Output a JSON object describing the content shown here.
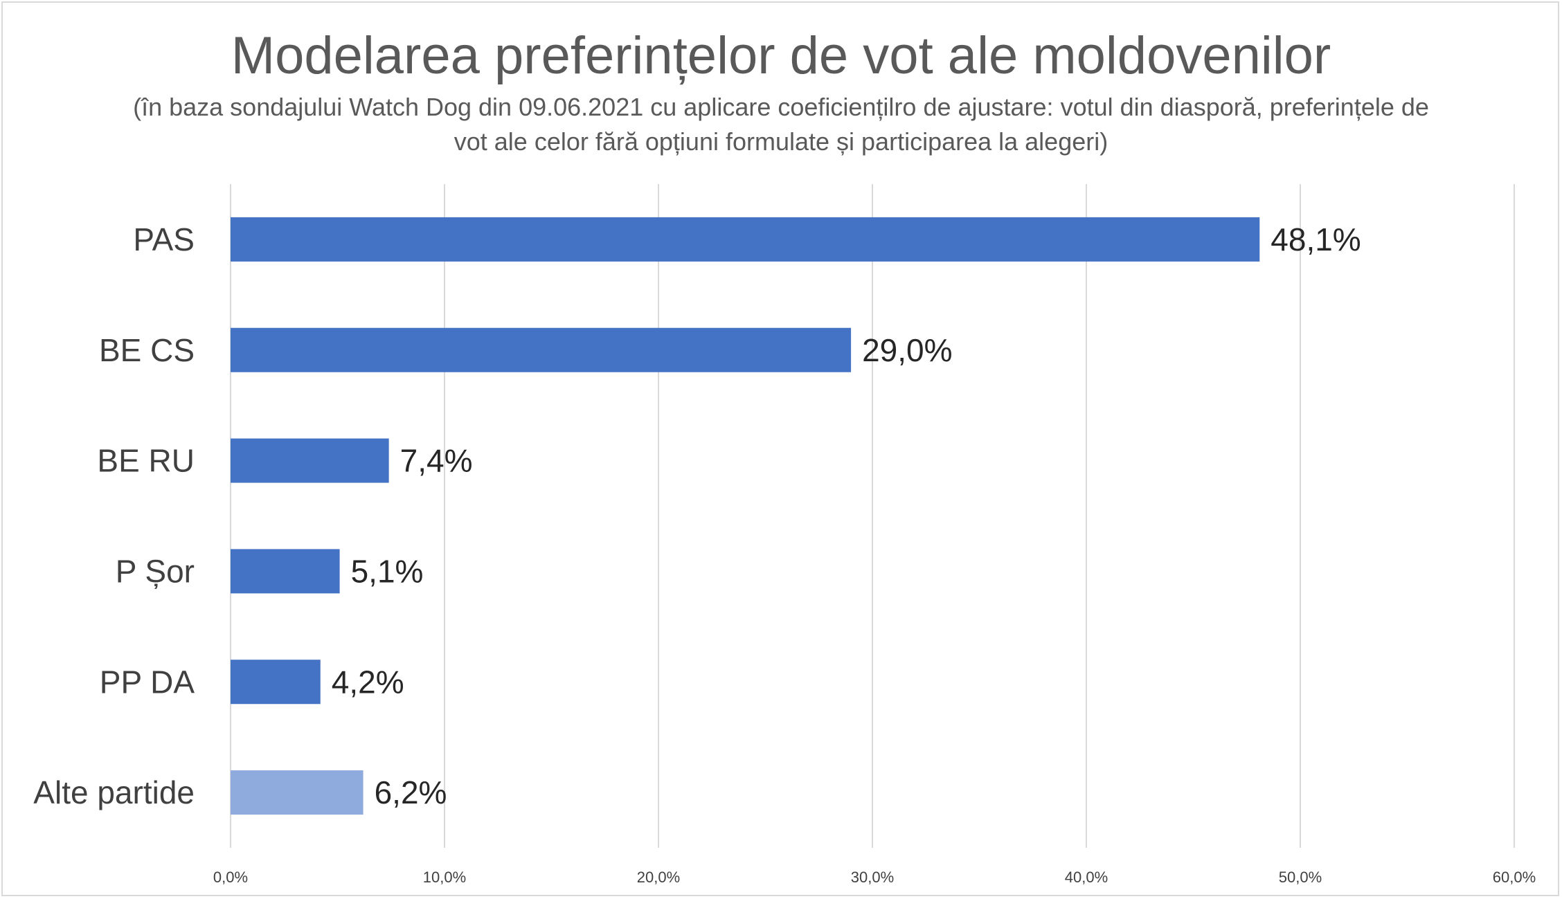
{
  "chart_data": {
    "type": "bar",
    "orientation": "horizontal",
    "title": "Modelarea preferințelor de vot ale moldovenilor",
    "subtitle": "(în baza sondajului Watch Dog din 09.06.2021 cu aplicare coeficiențilro de ajustare: votul din diasporă, preferințele de vot ale celor fără opțiuni formulate și participarea la alegeri)",
    "categories": [
      "PAS",
      "BE CS",
      "BE RU",
      "P Șor",
      "PP DA",
      "Alte partide"
    ],
    "values": [
      48.1,
      29.0,
      7.4,
      5.1,
      4.2,
      6.2
    ],
    "data_labels": [
      "48,1%",
      "29,0%",
      "7,4%",
      "5,1%",
      "4,2%",
      "6,2%"
    ],
    "bar_colors": [
      "#4472c4",
      "#4472c4",
      "#4472c4",
      "#4472c4",
      "#4472c4",
      "#8faadc"
    ],
    "xlim": [
      0,
      60
    ],
    "x_ticks": [
      0,
      10,
      20,
      30,
      40,
      50,
      60
    ],
    "x_tick_labels": [
      "0,0%",
      "10,0%",
      "20,0%",
      "30,0%",
      "40,0%",
      "50,0%",
      "60,0%"
    ],
    "xlabel": "",
    "ylabel": "",
    "grid": true,
    "legend": "none"
  },
  "colors": {
    "bar_main": "#4472c4",
    "bar_other": "#8faadc",
    "gridline": "#d9d9d9",
    "title_text": "#595959"
  }
}
